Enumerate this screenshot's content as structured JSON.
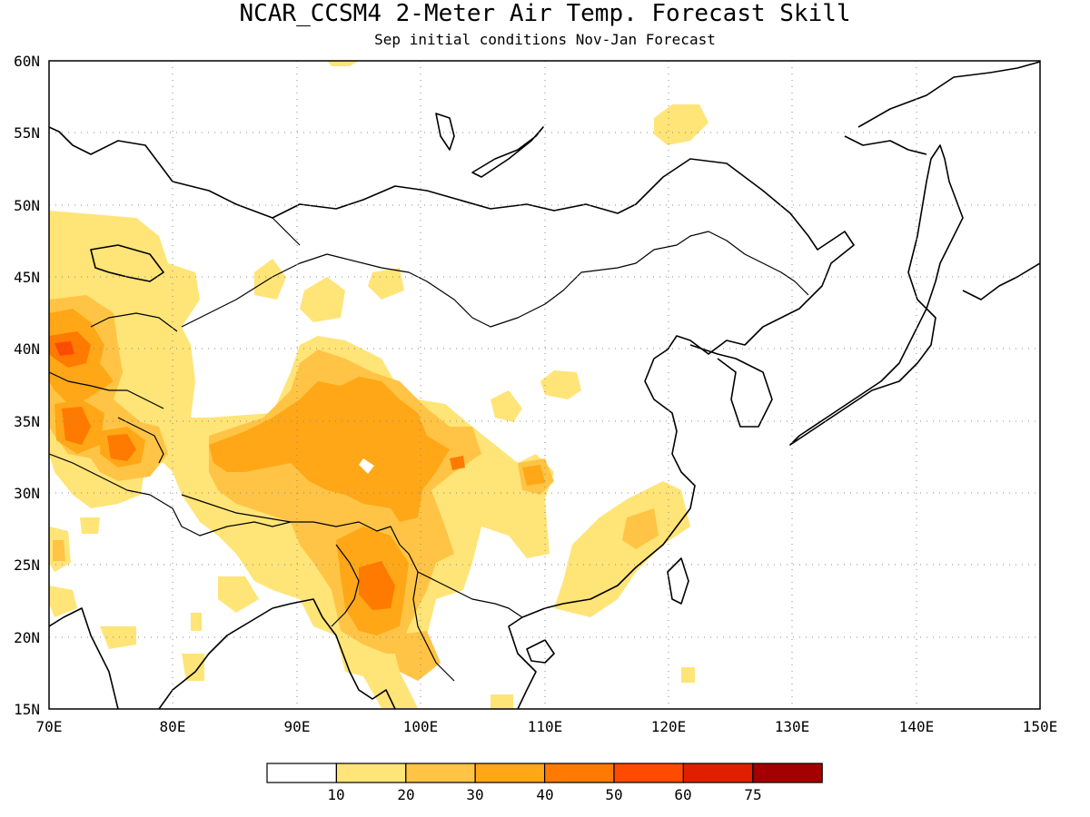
{
  "title": "NCAR_CCSM4 2-Meter Air Temp. Forecast Skill",
  "subtitle": "Sep initial conditions  Nov-Jan Forecast",
  "map": {
    "lon_range": [
      70,
      150
    ],
    "lat_range": [
      15,
      60
    ],
    "lon_ticks": [
      "70E",
      "80E",
      "90E",
      "100E",
      "110E",
      "120E",
      "130E",
      "140E",
      "150E"
    ],
    "lat_ticks": [
      "15N",
      "20N",
      "25N",
      "30N",
      "35N",
      "40N",
      "45N",
      "50N",
      "55N",
      "60N"
    ],
    "grid": "dotted"
  },
  "colorbar": {
    "labels": [
      "10",
      "20",
      "30",
      "40",
      "50",
      "60",
      "75"
    ],
    "colors": [
      "#ffffff",
      "#ffe478",
      "#ffc445",
      "#ffa716",
      "#ff7a00",
      "#ff4b00",
      "#e01f00",
      "#a50000"
    ]
  }
}
